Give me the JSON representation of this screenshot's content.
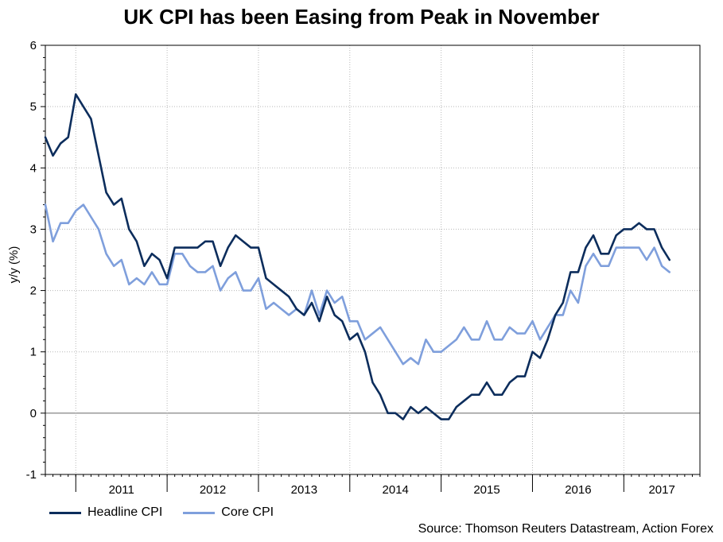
{
  "chart_data": {
    "type": "line",
    "title": "UK CPI has been Easing from Peak in November",
    "xlabel": "",
    "ylabel": "y/y (%)",
    "ylim": [
      -1,
      6
    ],
    "yticks": [
      "-1",
      "0",
      "1",
      "2",
      "3",
      "4",
      "5",
      "6"
    ],
    "x_start": "2010-09",
    "x_end": "2017-11",
    "year_labels": [
      "2011",
      "2012",
      "2013",
      "2014",
      "2015",
      "2016",
      "2017"
    ],
    "grid": true,
    "legend_position": "bottom-left",
    "series": [
      {
        "name": "Headline CPI",
        "color": "#0c2d5c",
        "start": "2010-09",
        "values": [
          4.5,
          4.2,
          4.4,
          4.5,
          5.2,
          5.0,
          4.8,
          4.2,
          3.6,
          3.4,
          3.5,
          3.0,
          2.8,
          2.4,
          2.6,
          2.5,
          2.2,
          2.7,
          2.7,
          2.7,
          2.7,
          2.8,
          2.8,
          2.4,
          2.7,
          2.9,
          2.8,
          2.7,
          2.7,
          2.2,
          2.1,
          2.0,
          1.9,
          1.7,
          1.6,
          1.8,
          1.5,
          1.9,
          1.6,
          1.5,
          1.2,
          1.3,
          1.0,
          0.5,
          0.3,
          0.0,
          0.0,
          -0.1,
          0.1,
          0.0,
          0.1,
          0.0,
          -0.1,
          -0.1,
          0.1,
          0.2,
          0.3,
          0.3,
          0.5,
          0.3,
          0.3,
          0.5,
          0.6,
          0.6,
          1.0,
          0.9,
          1.2,
          1.6,
          1.8,
          2.3,
          2.3,
          2.7,
          2.9,
          2.6,
          2.6,
          2.9,
          3.0,
          3.0,
          3.1,
          3.0,
          3.0,
          2.7,
          2.5
        ]
      },
      {
        "name": "Core CPI",
        "color": "#7f9fdc",
        "start": "2010-09",
        "values": [
          3.4,
          2.8,
          3.1,
          3.1,
          3.3,
          3.4,
          3.2,
          3.0,
          2.6,
          2.4,
          2.5,
          2.1,
          2.2,
          2.1,
          2.3,
          2.1,
          2.1,
          2.6,
          2.6,
          2.4,
          2.3,
          2.3,
          2.4,
          2.0,
          2.2,
          2.3,
          2.0,
          2.0,
          2.2,
          1.7,
          1.8,
          1.7,
          1.6,
          1.7,
          1.6,
          2.0,
          1.6,
          2.0,
          1.8,
          1.9,
          1.5,
          1.5,
          1.2,
          1.3,
          1.4,
          1.2,
          1.0,
          0.8,
          0.9,
          0.8,
          1.2,
          1.0,
          1.0,
          1.1,
          1.2,
          1.4,
          1.2,
          1.2,
          1.5,
          1.2,
          1.2,
          1.4,
          1.3,
          1.3,
          1.5,
          1.2,
          1.4,
          1.6,
          1.6,
          2.0,
          1.8,
          2.4,
          2.6,
          2.4,
          2.4,
          2.7,
          2.7,
          2.7,
          2.7,
          2.5,
          2.7,
          2.4,
          2.3
        ]
      }
    ],
    "source": "Source: Thomson Reuters Datastream, Action Forex"
  }
}
